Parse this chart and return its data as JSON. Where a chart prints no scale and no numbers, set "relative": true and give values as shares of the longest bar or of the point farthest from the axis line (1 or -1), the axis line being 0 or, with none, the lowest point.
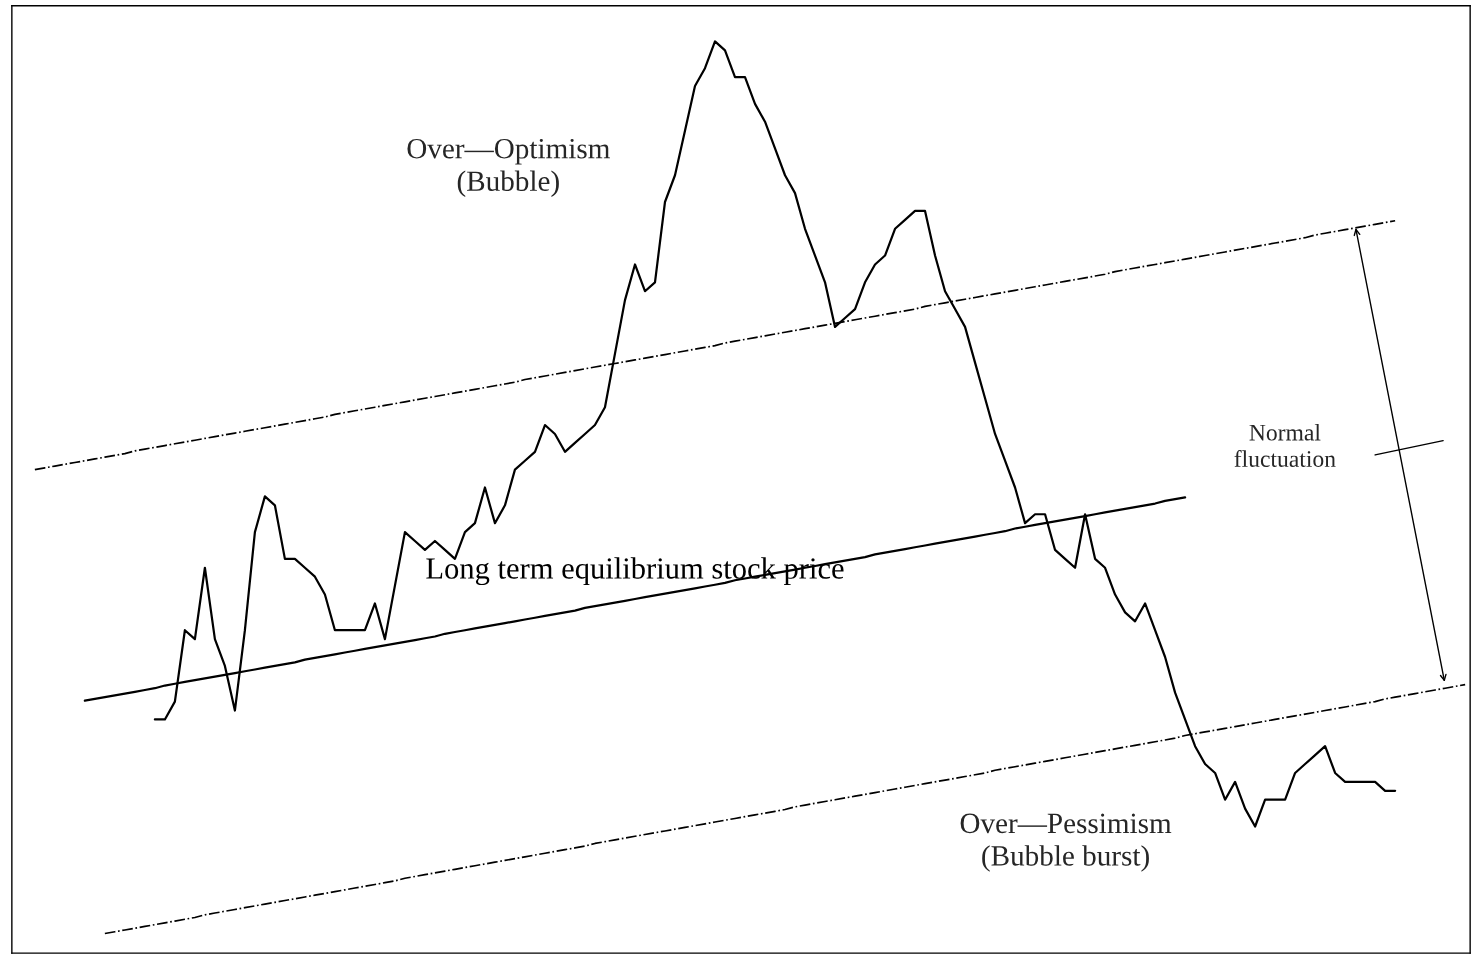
{
  "chart_data": {
    "type": "line",
    "relative": true,
    "categories": [
      null,
      null,
      null,
      null,
      null,
      null,
      null,
      null,
      null,
      null,
      null,
      null,
      null,
      null,
      null,
      null,
      null,
      null,
      null,
      null,
      null,
      null,
      null,
      null,
      null,
      null,
      null,
      null,
      null,
      null,
      null,
      null,
      null,
      null,
      null,
      null,
      null,
      null,
      null,
      null,
      null,
      null,
      null,
      null,
      null,
      null,
      null,
      null,
      null,
      null,
      null,
      null,
      null,
      null,
      null,
      null,
      null,
      null,
      null,
      null,
      null,
      null,
      null,
      null,
      null,
      null,
      null,
      null,
      null,
      null,
      null,
      null,
      null,
      null,
      null,
      null,
      null,
      null,
      null,
      null,
      null,
      null,
      null,
      null,
      null,
      null,
      null,
      null,
      null,
      null,
      null,
      null,
      null,
      null,
      null,
      null,
      null,
      null,
      null,
      null,
      null,
      null,
      null,
      null,
      null,
      null,
      null,
      null,
      null,
      null,
      null,
      null,
      null,
      null,
      null,
      null,
      null,
      null,
      null,
      null,
      null,
      null,
      null,
      null,
      null,
      null,
      null,
      null,
      null,
      null,
      null,
      null,
      null,
      null,
      null,
      null,
      null,
      null,
      null,
      null,
      null,
      null,
      null,
      null
    ],
    "series": [
      {
        "color": "#000000",
        "line_style": "solid",
        "values": [
          null,
          null,
          null,
          null,
          null,
          null,
          null,
          null,
          null,
          null,
          null,
          null,
          0.24,
          0.24,
          0.26,
          0.34,
          0.33,
          0.41,
          0.33,
          0.3,
          0.25,
          0.34,
          0.45,
          0.49,
          0.48,
          0.42,
          0.42,
          0.41,
          0.4,
          0.38,
          0.34,
          0.34,
          0.34,
          0.34,
          0.37,
          0.33,
          0.39,
          0.45,
          0.44,
          0.43,
          0.44,
          0.43,
          0.42,
          0.45,
          0.46,
          0.5,
          0.46,
          0.48,
          0.52,
          0.53,
          0.54,
          0.57,
          0.56,
          0.54,
          0.55,
          0.56,
          0.57,
          0.59,
          0.65,
          0.71,
          0.75,
          0.72,
          0.73,
          0.82,
          0.85,
          0.9,
          0.95,
          0.97,
          1.0,
          0.99,
          0.96,
          0.96,
          0.93,
          0.91,
          0.88,
          0.85,
          0.83,
          0.79,
          0.76,
          0.73,
          0.68,
          0.69,
          0.7,
          0.73,
          0.75,
          0.76,
          0.79,
          0.8,
          0.81,
          0.81,
          0.76,
          0.72,
          0.7,
          0.68,
          0.64,
          0.6,
          0.56,
          0.53,
          0.5,
          0.46,
          0.47,
          0.47,
          0.43,
          0.42,
          0.41,
          0.47,
          0.42,
          0.41,
          0.38,
          0.36,
          0.35,
          0.37,
          0.34,
          0.31,
          0.27,
          0.24,
          0.21,
          0.19,
          0.18,
          0.15,
          0.17,
          0.14,
          0.12,
          0.15,
          0.15,
          0.15,
          0.18,
          0.19,
          0.2,
          0.21,
          0.18,
          0.17,
          0.17,
          0.17,
          0.17,
          0.16,
          0.16,
          null,
          null,
          null,
          null,
          null,
          null,
          null
        ]
      },
      {
        "name": "Long term equilibrium stock price",
        "color": "#000000",
        "line_style": "solid",
        "values": [
          null,
          null,
          null,
          null,
          null,
          0.261,
          0.263,
          0.265,
          0.267,
          0.269,
          0.271,
          0.273,
          0.275,
          0.278,
          0.28,
          0.282,
          0.284,
          0.286,
          0.288,
          0.29,
          0.292,
          0.294,
          0.296,
          0.298,
          0.3,
          0.302,
          0.304,
          0.307,
          0.309,
          0.311,
          0.313,
          0.315,
          0.317,
          0.319,
          0.321,
          0.323,
          0.325,
          0.327,
          0.329,
          0.331,
          0.333,
          0.336,
          0.338,
          0.34,
          0.342,
          0.344,
          0.346,
          0.348,
          0.35,
          0.352,
          0.354,
          0.356,
          0.358,
          0.36,
          0.362,
          0.365,
          0.367,
          0.369,
          0.371,
          0.373,
          0.375,
          0.377,
          0.379,
          0.381,
          0.383,
          0.385,
          0.387,
          0.389,
          0.391,
          0.393,
          0.396,
          0.398,
          0.4,
          0.402,
          0.404,
          0.406,
          0.408,
          0.41,
          0.412,
          0.414,
          0.416,
          0.418,
          0.42,
          0.422,
          0.425,
          0.427,
          0.429,
          0.431,
          0.433,
          0.435,
          0.437,
          0.439,
          0.441,
          0.443,
          0.445,
          0.447,
          0.449,
          0.451,
          0.454,
          0.456,
          0.458,
          0.46,
          0.462,
          0.464,
          0.466,
          0.468,
          0.47,
          0.472,
          0.474,
          0.476,
          0.478,
          0.48,
          0.482,
          0.485,
          0.487,
          0.489,
          null,
          null,
          null,
          null,
          null,
          null,
          null,
          null,
          null,
          null,
          null,
          null,
          null,
          null,
          null,
          null,
          null,
          null,
          null,
          null,
          null,
          null,
          null,
          null,
          null,
          null,
          null,
          null
        ]
      },
      {
        "color": "#000000",
        "line_style": "dashdot",
        "values": [
          0.52,
          0.522,
          0.524,
          0.526,
          0.528,
          0.53,
          0.532,
          0.534,
          0.536,
          0.538,
          0.541,
          0.543,
          0.545,
          0.547,
          0.549,
          0.551,
          0.553,
          0.555,
          0.557,
          0.559,
          0.561,
          0.563,
          0.565,
          0.567,
          0.569,
          0.571,
          0.573,
          0.575,
          0.577,
          0.579,
          0.582,
          0.584,
          0.586,
          0.588,
          0.59,
          0.592,
          0.594,
          0.596,
          0.598,
          0.6,
          0.602,
          0.604,
          0.606,
          0.608,
          0.61,
          0.612,
          0.614,
          0.616,
          0.618,
          0.621,
          0.623,
          0.625,
          0.627,
          0.629,
          0.631,
          0.633,
          0.635,
          0.637,
          0.639,
          0.641,
          0.643,
          0.645,
          0.647,
          0.649,
          0.651,
          0.653,
          0.655,
          0.657,
          0.659,
          0.662,
          0.664,
          0.666,
          0.668,
          0.67,
          0.672,
          0.674,
          0.676,
          0.678,
          0.68,
          0.682,
          0.684,
          0.686,
          0.688,
          0.69,
          0.692,
          0.694,
          0.696,
          0.698,
          0.7,
          0.703,
          0.705,
          0.707,
          0.709,
          0.711,
          0.713,
          0.715,
          0.717,
          0.719,
          0.721,
          0.723,
          0.725,
          0.727,
          0.729,
          0.731,
          0.733,
          0.735,
          0.737,
          0.739,
          0.742,
          0.744,
          0.746,
          0.748,
          0.75,
          0.752,
          0.754,
          0.756,
          0.758,
          0.76,
          0.762,
          0.764,
          0.766,
          0.768,
          0.77,
          0.772,
          0.774,
          0.776,
          0.778,
          0.78,
          0.783,
          0.785,
          0.787,
          0.789,
          0.791,
          0.793,
          0.795,
          0.797,
          0.799,
          null,
          null,
          null,
          null,
          null,
          null,
          null
        ]
      },
      {
        "color": "#000000",
        "line_style": "dashdot",
        "values": [
          null,
          null,
          null,
          null,
          null,
          null,
          null,
          0,
          0.002,
          0.004,
          0.006,
          0.008,
          0.01,
          0.012,
          0.014,
          0.016,
          0.018,
          0.021,
          0.023,
          0.025,
          0.027,
          0.029,
          0.031,
          0.033,
          0.035,
          0.037,
          0.039,
          0.041,
          0.043,
          0.045,
          0.047,
          0.049,
          0.051,
          0.053,
          0.055,
          0.057,
          0.059,
          0.062,
          0.064,
          0.066,
          0.068,
          0.07,
          0.072,
          0.074,
          0.076,
          0.078,
          0.08,
          0.082,
          0.084,
          0.086,
          0.088,
          0.09,
          0.092,
          0.094,
          0.096,
          0.098,
          0.101,
          0.103,
          0.105,
          0.107,
          0.109,
          0.111,
          0.113,
          0.115,
          0.117,
          0.119,
          0.121,
          0.123,
          0.125,
          0.127,
          0.129,
          0.131,
          0.133,
          0.135,
          0.137,
          0.139,
          0.142,
          0.144,
          0.146,
          0.148,
          0.15,
          0.152,
          0.154,
          0.156,
          0.158,
          0.16,
          0.162,
          0.164,
          0.166,
          0.168,
          0.17,
          0.172,
          0.174,
          0.176,
          0.178,
          0.18,
          0.183,
          0.185,
          0.187,
          0.189,
          0.191,
          0.193,
          0.195,
          0.197,
          0.199,
          0.201,
          0.203,
          0.205,
          0.207,
          0.209,
          0.211,
          0.213,
          0.215,
          0.217,
          0.219,
          0.222,
          0.224,
          0.226,
          0.228,
          0.23,
          0.232,
          0.234,
          0.236,
          0.238,
          0.24,
          0.242,
          0.244,
          0.246,
          0.248,
          0.25,
          0.252,
          0.254,
          0.256,
          0.258,
          0.26,
          0.263,
          0.265,
          0.267,
          0.269,
          0.271,
          0.273,
          0.275,
          0.277,
          0.279
        ]
      }
    ],
    "annotations": [
      "Over—Optimism\n(Bubble)",
      "Over—Pessimism\n(Bubble burst)",
      "Normal\nfluctuation"
    ]
  }
}
